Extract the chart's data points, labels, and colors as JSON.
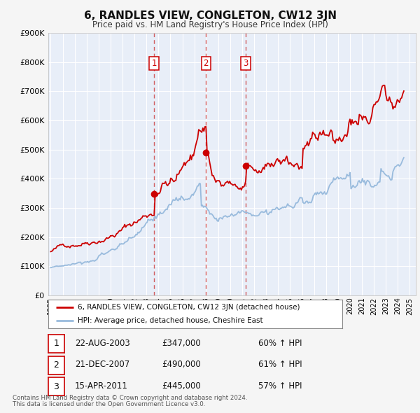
{
  "title": "6, RANDLES VIEW, CONGLETON, CW12 3JN",
  "subtitle": "Price paid vs. HM Land Registry's House Price Index (HPI)",
  "ylim": [
    0,
    900000
  ],
  "yticks": [
    0,
    100000,
    200000,
    300000,
    400000,
    500000,
    600000,
    700000,
    800000,
    900000
  ],
  "ytick_labels": [
    "£0",
    "£100K",
    "£200K",
    "£300K",
    "£400K",
    "£500K",
    "£600K",
    "£700K",
    "£800K",
    "£900K"
  ],
  "xlim_start": 1994.8,
  "xlim_end": 2025.5,
  "fig_bg_color": "#f5f5f5",
  "plot_bg_color": "#e8eef8",
  "grid_color": "#ffffff",
  "red_line_color": "#cc0000",
  "blue_line_color": "#99bbdd",
  "sale_marker_color": "#cc0000",
  "vline_color": "#cc4444",
  "sales": [
    {
      "date_num": 2003.64,
      "price": 347000,
      "label": "1"
    },
    {
      "date_num": 2007.97,
      "price": 490000,
      "label": "2"
    },
    {
      "date_num": 2011.29,
      "price": 445000,
      "label": "3"
    }
  ],
  "legend_label_red": "6, RANDLES VIEW, CONGLETON, CW12 3JN (detached house)",
  "legend_label_blue": "HPI: Average price, detached house, Cheshire East",
  "table_rows": [
    {
      "num": "1",
      "date": "22-AUG-2003",
      "price": "£347,000",
      "hpi": "60% ↑ HPI"
    },
    {
      "num": "2",
      "date": "21-DEC-2007",
      "price": "£490,000",
      "hpi": "61% ↑ HPI"
    },
    {
      "num": "3",
      "date": "15-APR-2011",
      "price": "£445,000",
      "hpi": "57% ↑ HPI"
    }
  ],
  "footnote1": "Contains HM Land Registry data © Crown copyright and database right 2024.",
  "footnote2": "This data is licensed under the Open Government Licence v3.0."
}
